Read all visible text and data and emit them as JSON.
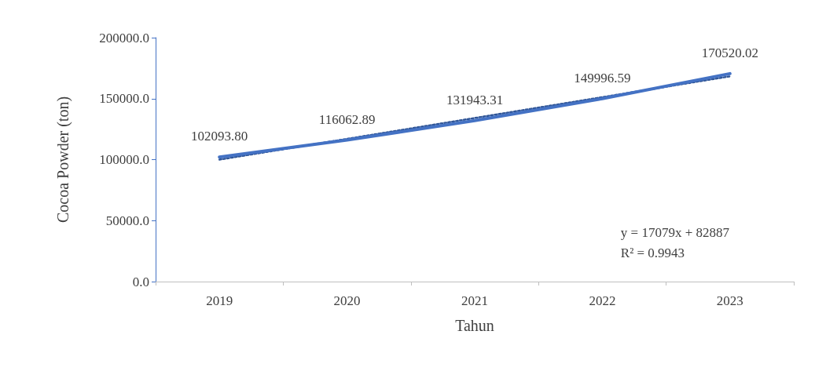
{
  "chart_data": {
    "type": "line",
    "xlabel": "Tahun",
    "ylabel": "Cocoa Powder (ton)",
    "categories": [
      "2019",
      "2020",
      "2021",
      "2022",
      "2023"
    ],
    "series": [
      {
        "color": "#4472c4",
        "values": [
          102093.8,
          116062.89,
          131943.31,
          149996.59,
          170520.02
        ],
        "value_labels": [
          "102093.80",
          "116062.89",
          "131943.31",
          "149996.59",
          "170520.02"
        ],
        "line_style": "solid"
      },
      {
        "type": "line",
        "color": "#2f5597",
        "values": [
          100000,
          117000,
          134100,
          151200,
          168300
        ],
        "line_style": "dotted"
      }
    ],
    "ylim": [
      0,
      200000
    ],
    "yticks": [
      {
        "value": 0,
        "label": "0.0"
      },
      {
        "value": 50000,
        "label": "50000.0"
      },
      {
        "value": 100000,
        "label": "100000.0"
      },
      {
        "value": 150000,
        "label": "150000.0"
      },
      {
        "value": 200000,
        "label": "200000.0"
      }
    ],
    "grid": false,
    "marker": "none",
    "annotations": [
      "y = 17079x + 82887",
      "R² = 0.9943"
    ]
  }
}
